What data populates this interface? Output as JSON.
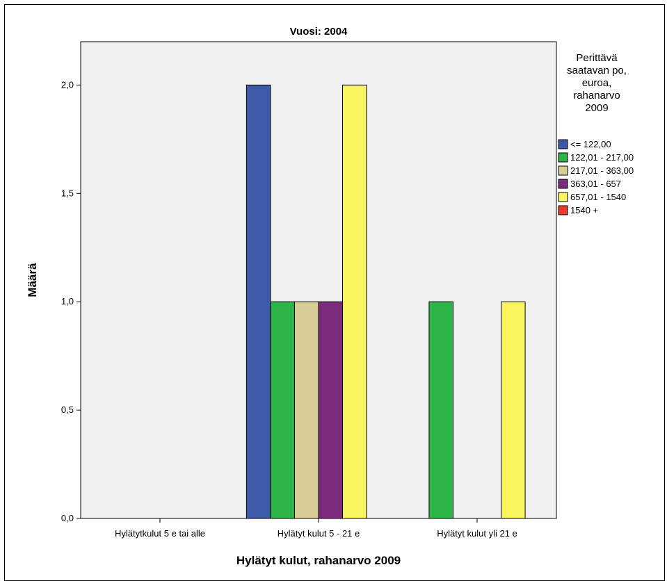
{
  "chart_data": {
    "type": "bar",
    "title": "Vuosi: 2004",
    "xlabel": "Hylätyt kulut, rahanarvo 2009",
    "ylabel": "Määrä",
    "ylim": [
      0,
      2.2
    ],
    "yticks": [
      {
        "value": 0,
        "label": "0,0"
      },
      {
        "value": 0.5,
        "label": "0,5"
      },
      {
        "value": 1.0,
        "label": "1,0"
      },
      {
        "value": 1.5,
        "label": "1,5"
      },
      {
        "value": 2.0,
        "label": "2,0"
      }
    ],
    "categories": [
      "Hylätytkulut 5 e tai alle",
      "Hylätyt kulut 5 - 21 e",
      "Hylätyt kulut yli 21 e"
    ],
    "legend_title": [
      "Perittävä",
      "saatavan po,",
      "euroa,",
      "rahanarvo",
      "2009"
    ],
    "legend_position": "right",
    "grid": false,
    "series": [
      {
        "name": "<= 122,00",
        "color": "#3d5aa8",
        "values": [
          0,
          2,
          0
        ]
      },
      {
        "name": "122,01 - 217,00",
        "color": "#2eb54a",
        "values": [
          0,
          1,
          1
        ]
      },
      {
        "name": "217,01 - 363,00",
        "color": "#d6cd97",
        "values": [
          0,
          1,
          0
        ]
      },
      {
        "name": "363,01 - 657",
        "color": "#7b2a7c",
        "values": [
          0,
          1,
          0
        ]
      },
      {
        "name": "657,01 - 1540",
        "color": "#f8f55e",
        "values": [
          0,
          2,
          1
        ]
      },
      {
        "name": "1540 +",
        "color": "#e83a2f",
        "values": [
          0,
          0,
          0
        ]
      }
    ]
  }
}
